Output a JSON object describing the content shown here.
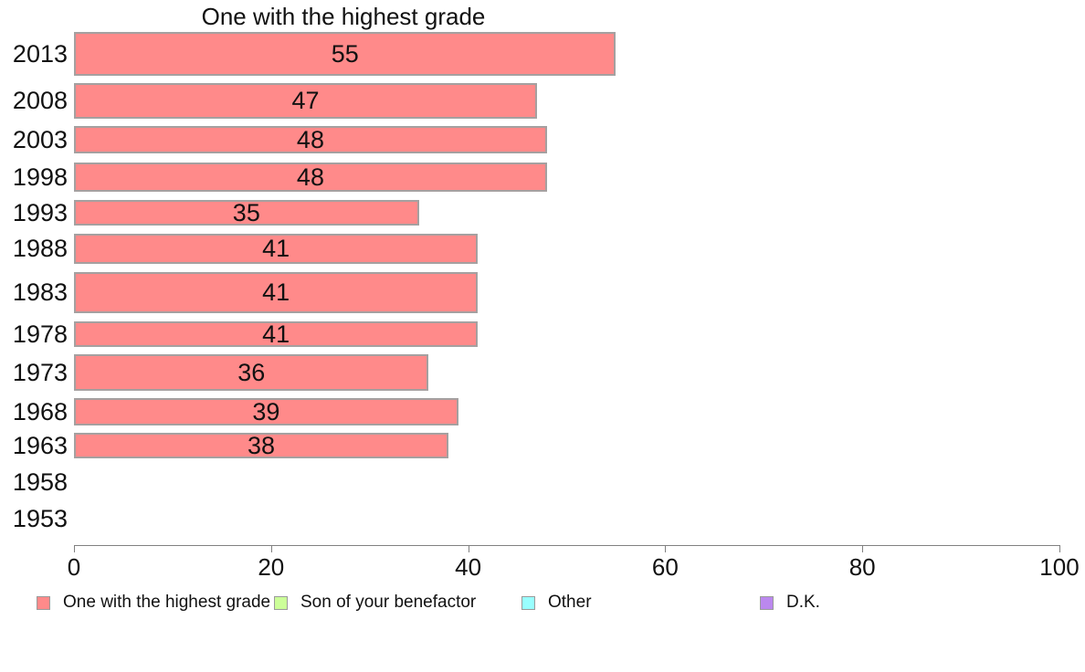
{
  "chart_data": {
    "type": "bar",
    "orientation": "horizontal",
    "title": "One with the highest grade",
    "categories": [
      "2013",
      "2008",
      "2003",
      "1998",
      "1993",
      "1988",
      "1983",
      "1978",
      "1973",
      "1968",
      "1963",
      "1958",
      "1953"
    ],
    "series": [
      {
        "name": "One with the highest grade",
        "color": "#ff8a8a",
        "values": [
          55,
          47,
          48,
          48,
          35,
          41,
          41,
          41,
          36,
          39,
          38,
          null,
          null
        ]
      }
    ],
    "value_labels": true,
    "xlabel": "",
    "ylabel": "",
    "xlim": [
      0,
      100
    ],
    "x_ticks": [
      0,
      20,
      40,
      60,
      80,
      100
    ],
    "grid": false,
    "legend_position": "bottom",
    "legend": [
      {
        "label": "One with the highest grade",
        "color": "#ff8a8a"
      },
      {
        "label": "Son of your benefactor",
        "color": "#ccff99"
      },
      {
        "label": "Other",
        "color": "#99ffff"
      },
      {
        "label": "D.K.",
        "color": "#bb88ee"
      }
    ],
    "bar_edge_color": "#a5a0a0"
  }
}
